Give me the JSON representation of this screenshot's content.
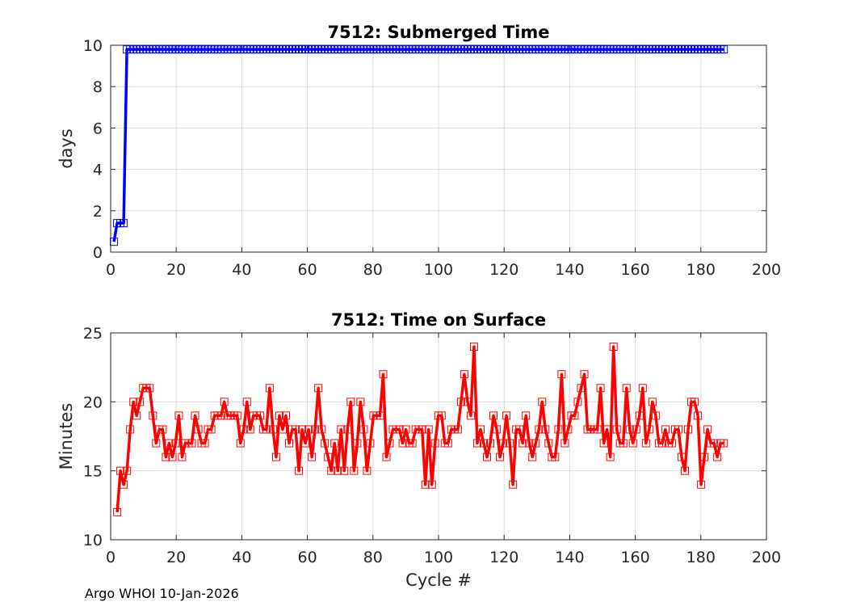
{
  "footer": "Argo WHOI 10-Jan-2026",
  "chart_data": [
    {
      "type": "line",
      "title": "7512: Submerged Time",
      "xlabel": "",
      "ylabel": "days",
      "xlim": [
        0,
        200
      ],
      "ylim": [
        0,
        10
      ],
      "xticks": [
        "0",
        "20",
        "40",
        "60",
        "80",
        "100",
        "120",
        "140",
        "160",
        "180",
        "200"
      ],
      "yticks": [
        "0",
        "2",
        "4",
        "6",
        "8",
        "10"
      ],
      "grid": true,
      "marker": "square",
      "color": "#0000ff",
      "x_start": 1,
      "x_end": 187,
      "values": [
        0.5,
        1.4,
        1.4,
        1.4,
        9.8,
        9.8,
        9.8,
        9.8,
        9.8,
        9.8,
        9.8,
        9.8,
        9.8,
        9.8,
        9.8,
        9.8,
        9.8,
        9.8,
        9.8,
        9.8,
        9.8,
        9.8,
        9.8,
        9.8,
        9.8,
        9.8,
        9.8,
        9.8,
        9.8,
        9.8,
        9.8,
        9.8,
        9.8,
        9.8,
        9.8,
        9.8,
        9.8,
        9.8,
        9.8,
        9.8,
        9.8,
        9.8,
        9.8,
        9.8,
        9.8,
        9.8,
        9.8,
        9.8,
        9.8,
        9.8,
        9.8,
        9.8,
        9.8,
        9.8,
        9.8,
        9.8,
        9.8,
        9.8,
        9.8,
        9.8,
        9.8,
        9.8,
        9.8,
        9.8,
        9.8,
        9.8,
        9.8,
        9.8,
        9.8,
        9.8,
        9.8,
        9.8,
        9.8,
        9.8,
        9.8,
        9.8,
        9.8,
        9.8,
        9.8,
        9.8,
        9.8,
        9.8,
        9.8,
        9.8,
        9.8,
        9.8,
        9.8,
        9.8,
        9.8,
        9.8,
        9.8,
        9.8,
        9.8,
        9.8,
        9.8,
        9.8,
        9.8,
        9.8,
        9.8,
        9.8,
        9.8,
        9.8,
        9.8,
        9.8,
        9.8,
        9.8,
        9.8,
        9.8,
        9.8,
        9.8,
        9.8,
        9.8,
        9.8,
        9.8,
        9.8,
        9.8,
        9.8,
        9.8,
        9.8,
        9.8,
        9.8,
        9.8,
        9.8,
        9.8,
        9.8,
        9.8,
        9.8,
        9.8,
        9.8,
        9.8,
        9.8,
        9.8,
        9.8,
        9.8,
        9.8,
        9.8,
        9.8,
        9.8,
        9.8,
        9.8,
        9.8,
        9.8,
        9.8,
        9.8,
        9.8,
        9.8,
        9.8,
        9.8,
        9.8,
        9.8,
        9.8,
        9.8,
        9.8,
        9.8,
        9.8,
        9.8,
        9.8,
        9.8,
        9.8,
        9.8,
        9.8,
        9.8,
        9.8,
        9.8,
        9.8,
        9.8,
        9.8,
        9.8,
        9.8,
        9.8,
        9.8,
        9.8,
        9.8,
        9.8,
        9.8,
        9.8,
        9.8,
        9.8,
        9.8,
        9.8,
        9.8,
        9.8,
        9.8,
        9.8,
        9.8,
        9.8,
        9.8,
        9.8,
        9.8
      ]
    },
    {
      "type": "line",
      "title": "7512: Time on Surface",
      "xlabel": "Cycle #",
      "ylabel": "Minutes",
      "xlim": [
        0,
        200
      ],
      "ylim": [
        10,
        25
      ],
      "xticks": [
        "0",
        "20",
        "40",
        "60",
        "80",
        "100",
        "120",
        "140",
        "160",
        "180",
        "200"
      ],
      "yticks": [
        "10",
        "15",
        "20",
        "25"
      ],
      "grid": true,
      "marker": "square",
      "color": "#ff0000",
      "x_start": 2,
      "x_end": 187,
      "values": [
        12,
        15,
        14,
        15,
        18,
        20,
        19,
        20,
        21,
        21,
        21,
        19,
        17,
        18,
        18,
        16,
        17,
        16,
        17,
        19,
        16,
        17,
        17,
        17,
        19,
        18,
        17,
        17,
        18,
        18,
        19,
        19,
        19,
        20,
        19,
        19,
        19,
        19,
        17,
        18,
        20,
        18,
        19,
        19,
        19,
        18,
        18,
        21,
        18,
        16,
        19,
        18,
        19,
        17,
        18,
        18,
        15,
        18,
        17,
        18,
        16,
        18,
        21,
        18,
        17,
        16,
        15,
        17,
        15,
        18,
        15,
        18,
        20,
        15,
        17,
        20,
        18,
        15,
        17,
        19,
        19,
        19,
        22,
        16,
        17,
        18,
        18,
        18,
        17,
        18,
        17,
        17,
        18,
        18,
        18,
        14,
        18,
        14,
        17,
        19,
        19,
        17,
        17,
        18,
        18,
        18,
        20,
        22,
        20,
        19,
        24,
        17,
        18,
        17,
        16,
        17,
        19,
        18,
        16,
        17,
        19,
        17,
        14,
        18,
        18,
        17,
        19,
        17,
        16,
        17,
        18,
        20,
        18,
        17,
        16,
        16,
        18,
        22,
        17,
        18,
        19,
        19,
        20,
        21,
        22,
        18,
        18,
        18,
        18,
        21,
        17,
        18,
        16,
        24,
        18,
        17,
        17,
        21,
        18,
        17,
        18,
        19,
        21,
        17,
        18,
        20,
        19,
        17,
        17,
        18,
        17,
        17,
        18,
        18,
        16,
        15,
        18,
        20,
        20,
        19,
        14,
        16,
        18,
        17,
        17,
        16,
        17,
        17
      ]
    }
  ]
}
